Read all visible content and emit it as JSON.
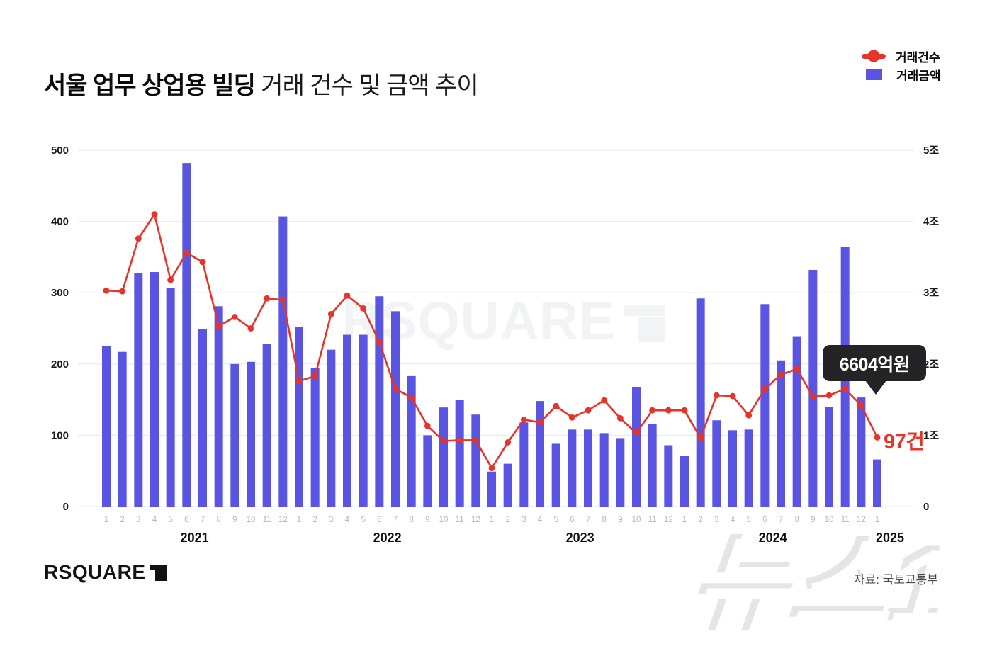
{
  "header": {
    "title_bold": "서울 업무 상업용 빌딩",
    "title_regular": " 거래 건수 및 금액 추이"
  },
  "legend": {
    "items": [
      {
        "label": "거래건수",
        "marker": "red-line-dot",
        "color": "#e8332a"
      },
      {
        "label": "거래금액",
        "marker": "blue-square",
        "color": "#5955e2"
      }
    ]
  },
  "chart_data": {
    "type": "combo",
    "title": "서울 업무 상업용 빌딩 거래 건수 및 금액 추이",
    "grid": "horizontal",
    "legend_position": "top-right",
    "years": [
      {
        "label": "2021",
        "months": [
          "1",
          "2",
          "3",
          "4",
          "5",
          "6",
          "7",
          "8",
          "9",
          "10",
          "11",
          "12"
        ]
      },
      {
        "label": "2022",
        "months": [
          "1",
          "2",
          "3",
          "4",
          "5",
          "6",
          "7",
          "8",
          "9",
          "10",
          "11",
          "12"
        ]
      },
      {
        "label": "2023",
        "months": [
          "1",
          "2",
          "3",
          "4",
          "5",
          "6",
          "7",
          "8",
          "9",
          "10",
          "11",
          "12"
        ]
      },
      {
        "label": "2024",
        "months": [
          "1",
          "2",
          "3",
          "4",
          "5",
          "6",
          "7",
          "8",
          "9",
          "10",
          "11",
          "12"
        ]
      },
      {
        "label": "2025",
        "months": [
          "1"
        ]
      }
    ],
    "left_axis": {
      "range": [
        0,
        500
      ],
      "ticks": [
        "0",
        "100",
        "200",
        "300",
        "400",
        "500"
      ],
      "unit": "건"
    },
    "right_axis": {
      "range": [
        0,
        5
      ],
      "ticks": [
        "0",
        "1조",
        "2조",
        "3조",
        "4조",
        "5조"
      ],
      "unit": "조원"
    },
    "series": [
      {
        "name": "거래건수",
        "type": "line",
        "axis": "left",
        "unit": "건",
        "color": "#e8332a",
        "values": [
          303,
          302,
          376,
          410,
          318,
          356,
          343,
          253,
          266,
          250,
          292,
          290,
          176,
          183,
          270,
          296,
          278,
          231,
          165,
          153,
          113,
          92,
          93,
          93,
          54,
          90,
          122,
          118,
          141,
          125,
          135,
          149,
          124,
          103,
          135,
          135,
          135,
          96,
          156,
          155,
          128,
          165,
          185,
          193,
          154,
          156,
          165,
          142,
          97
        ]
      },
      {
        "name": "거래금액",
        "type": "bar",
        "axis": "right",
        "unit": "조원",
        "color": "#5955e2",
        "values": [
          2.25,
          2.17,
          3.28,
          3.29,
          3.07,
          4.82,
          2.49,
          2.81,
          2.0,
          2.03,
          2.28,
          4.07,
          2.52,
          1.94,
          2.2,
          2.41,
          2.41,
          2.95,
          2.74,
          1.83,
          1.0,
          1.39,
          1.5,
          1.29,
          0.49,
          0.6,
          1.18,
          1.48,
          0.88,
          1.08,
          1.08,
          1.03,
          0.96,
          1.68,
          1.16,
          0.86,
          0.71,
          2.92,
          1.21,
          1.07,
          1.08,
          2.84,
          2.05,
          2.39,
          3.32,
          1.4,
          3.64,
          1.53,
          0.66
        ]
      }
    ],
    "annotations": {
      "callout_text": "6604억원",
      "callout_target": "2025-1 거래금액",
      "last_point_label": "97건",
      "last_point_target": "2025-1 거래건수"
    }
  },
  "footer": {
    "logo_text": "RSQUARE",
    "source": "자료: 국토교통부"
  },
  "watermarks": {
    "center": "RSQUARE",
    "bottom_right": "뉴스1"
  }
}
